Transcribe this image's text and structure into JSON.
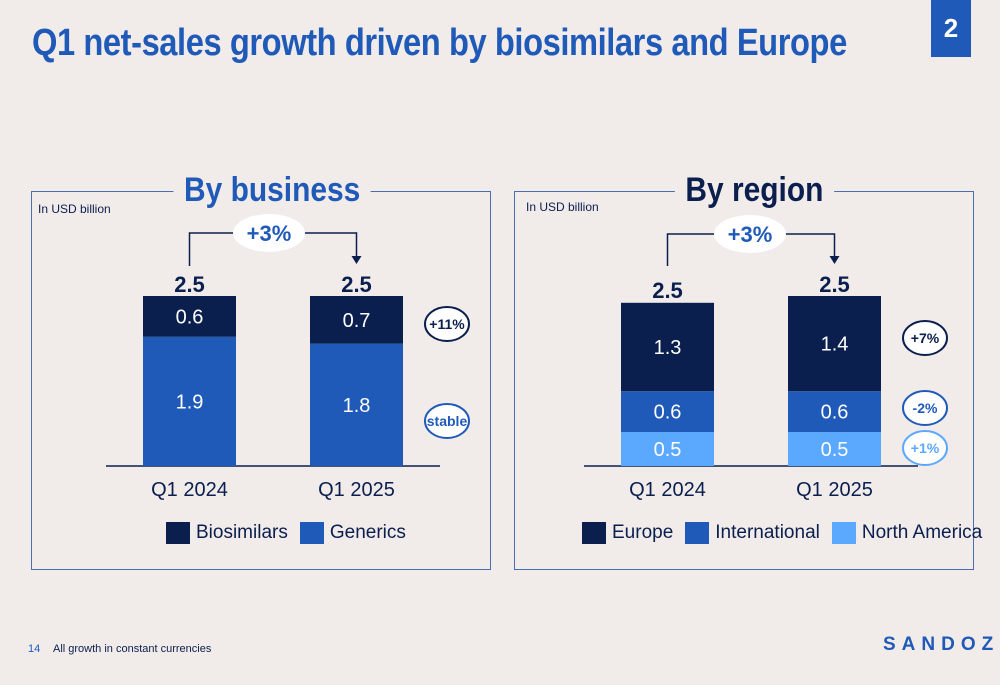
{
  "slide": {
    "title": "Q1 net-sales growth driven by biosimilars and Europe",
    "page_number": "2",
    "footer_page": "14",
    "footnote": "All growth in constant currencies",
    "logo": "SANDOZ"
  },
  "chart_data": [
    {
      "type": "bar",
      "stacked": true,
      "title": "By business",
      "unit_label": "In USD billion",
      "categories": [
        "Q1 2024",
        "Q1 2025"
      ],
      "totals": [
        "2.5",
        "2.5"
      ],
      "total_growth": "+3%",
      "series": [
        {
          "name": "Generics",
          "values": [
            1.9,
            1.8
          ],
          "labels": [
            "1.9",
            "1.8"
          ],
          "color": "#1f5ab8",
          "growth": "stable",
          "growth_color": "#1f5ab8"
        },
        {
          "name": "Biosimilars",
          "values": [
            0.6,
            0.7
          ],
          "labels": [
            "0.6",
            "0.7"
          ],
          "color": "#0b1f4e",
          "growth": "+11%",
          "growth_color": "#0b1f4e"
        }
      ],
      "legend": [
        "Biosimilars",
        "Generics"
      ],
      "legend_colors": [
        "#0b1f4e",
        "#1f5ab8"
      ],
      "legend_position": "bottom"
    },
    {
      "type": "bar",
      "stacked": true,
      "title": "By region",
      "unit_label": "In USD billion",
      "categories": [
        "Q1 2024",
        "Q1 2025"
      ],
      "totals": [
        "2.5",
        "2.5"
      ],
      "total_growth": "+3%",
      "series": [
        {
          "name": "North America",
          "values": [
            0.5,
            0.5
          ],
          "labels": [
            "0.5",
            "0.5"
          ],
          "color": "#5ba8ff",
          "growth": "+1%",
          "growth_color": "#5ba8ff"
        },
        {
          "name": "International",
          "values": [
            0.6,
            0.6
          ],
          "labels": [
            "0.6",
            "0.6"
          ],
          "color": "#1f5ab8",
          "growth": "-2%",
          "growth_color": "#1f5ab8"
        },
        {
          "name": "Europe",
          "values": [
            1.3,
            1.4
          ],
          "labels": [
            "1.3",
            "1.4"
          ],
          "color": "#0b1f4e",
          "growth": "+7%",
          "growth_color": "#0b1f4e"
        }
      ],
      "legend": [
        "Europe",
        "International",
        "North America"
      ],
      "legend_colors": [
        "#0b1f4e",
        "#1f5ab8",
        "#5ba8ff"
      ],
      "legend_position": "bottom"
    }
  ]
}
